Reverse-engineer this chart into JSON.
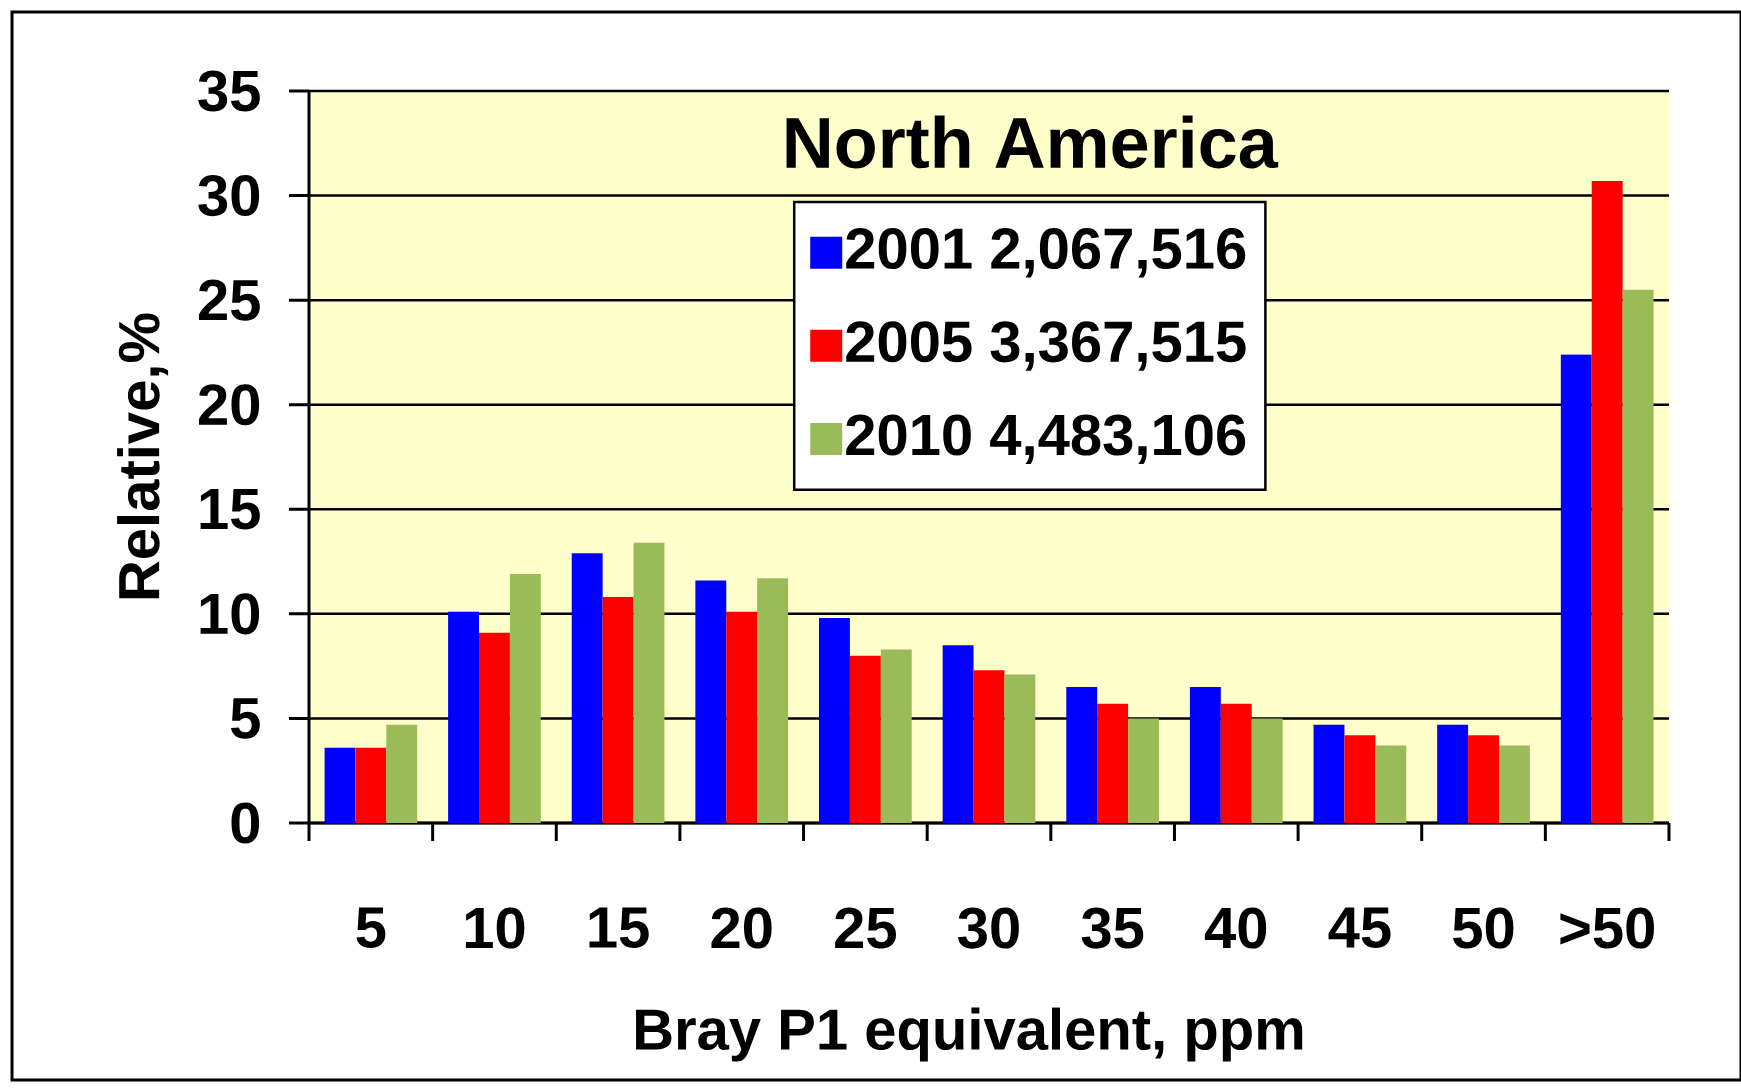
{
  "chart_data": {
    "type": "bar",
    "title": "North America",
    "xlabel": "Bray P1 equivalent,  ppm",
    "ylabel": "Relative,%",
    "categories": [
      "5",
      "10",
      "15",
      "20",
      "25",
      "30",
      "35",
      "40",
      "45",
      "50",
      ">50"
    ],
    "series": [
      {
        "name": "2001 2,067,516",
        "color": "#0000ff",
        "values": [
          3.6,
          10.1,
          12.9,
          11.6,
          9.8,
          8.5,
          6.5,
          6.5,
          4.7,
          4.7,
          22.4
        ]
      },
      {
        "name": "2005 3,367,515",
        "color": "#ff0000",
        "values": [
          3.6,
          9.1,
          10.8,
          10.1,
          8.0,
          7.3,
          5.7,
          5.7,
          4.2,
          4.2,
          30.7
        ]
      },
      {
        "name": "2010  4,483,106",
        "color": "#9bbb59",
        "values": [
          4.7,
          11.9,
          13.4,
          11.7,
          8.3,
          7.1,
          5.0,
          5.0,
          3.7,
          3.7,
          25.5
        ]
      }
    ],
    "ylim": [
      0,
      35
    ],
    "yticks": [
      0,
      5,
      10,
      15,
      20,
      25,
      30,
      35
    ],
    "grid": "y",
    "legend": "top"
  }
}
